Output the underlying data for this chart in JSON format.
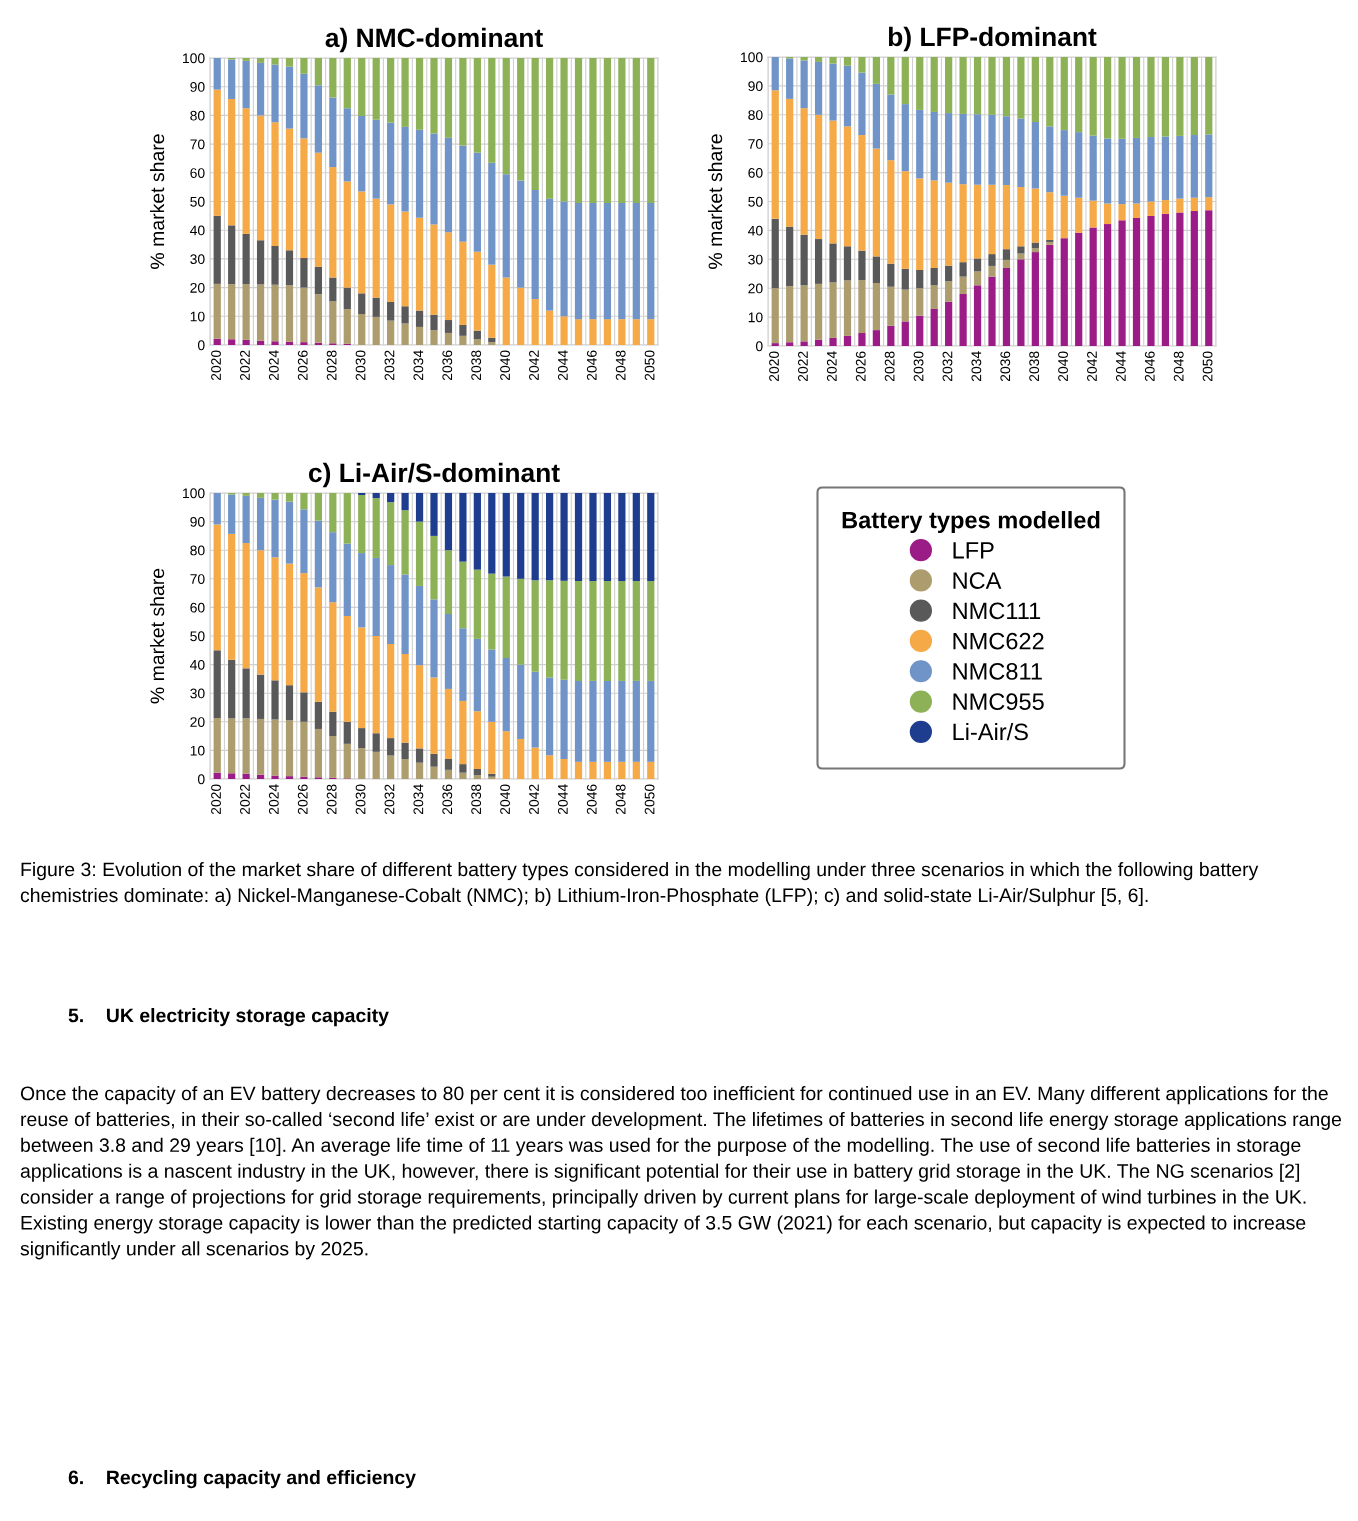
{
  "chart_data": [
    {
      "type": "bar",
      "stacked": true,
      "title": "a) NMC-dominant",
      "ylabel": "% market share",
      "ylim": [
        0,
        100
      ],
      "yticks": [
        0,
        10,
        20,
        30,
        40,
        50,
        60,
        70,
        80,
        90,
        100
      ],
      "grid": true,
      "legend": false,
      "categories": [
        "2020",
        null,
        "2022",
        null,
        "2024",
        null,
        "2026",
        null,
        "2028",
        null,
        "2030",
        null,
        "2032",
        null,
        "2034",
        null,
        "2036",
        null,
        "2038",
        null,
        "2040",
        null,
        "2042",
        null,
        "2044",
        null,
        "2046",
        null,
        "2048",
        null,
        "2050"
      ],
      "series": [
        {
          "color": "#9b1c86",
          "values": [
            2.2,
            2.0,
            1.8,
            1.5,
            1.3,
            1.1,
            1.0,
            0.8,
            0.6,
            0.4,
            0,
            0,
            0,
            0,
            0,
            0,
            0,
            0,
            0,
            0,
            0,
            0,
            0,
            0,
            0,
            0,
            0,
            0,
            0,
            0,
            0
          ]
        },
        {
          "color": "#ad9d6e",
          "values": [
            19.1,
            19.2,
            19.4,
            19.6,
            19.7,
            19.7,
            19,
            16.9,
            14.6,
            12.1,
            10.8,
            9.8,
            8.5,
            7.5,
            6.3,
            5.2,
            4.2,
            3.2,
            2,
            1,
            0,
            0,
            0,
            0,
            0,
            0,
            0,
            0,
            0,
            0,
            0
          ]
        },
        {
          "color": "#595959",
          "values": [
            23.7,
            20.5,
            17.5,
            15.4,
            13.5,
            12.2,
            10.3,
            9.5,
            8.3,
            7.5,
            7.2,
            6.7,
            6.5,
            6,
            5.7,
            5.3,
            4.5,
            3.8,
            3,
            1.5,
            0,
            0,
            0,
            0,
            0,
            0,
            0,
            0,
            0,
            0,
            0
          ]
        },
        {
          "color": "#f5a947",
          "values": [
            44,
            44,
            43.8,
            43.5,
            43.1,
            42.4,
            41.7,
            39.8,
            38.5,
            37,
            35.5,
            34.5,
            34,
            33,
            32.3,
            31.5,
            30.6,
            29,
            27.5,
            25.5,
            23.5,
            20,
            16,
            12,
            10,
            9,
            9,
            9,
            9,
            9,
            9
          ]
        },
        {
          "color": "#7094c8",
          "values": [
            11,
            13.8,
            16.5,
            18.3,
            20.1,
            21.6,
            22.5,
            23.5,
            24.2,
            25.5,
            26.3,
            27.5,
            28.5,
            29.5,
            30.7,
            31.7,
            32.9,
            33.5,
            34.5,
            35.5,
            36,
            37.3,
            38,
            39,
            40,
            40.5,
            40.5,
            40.5,
            40.5,
            40.5,
            40.5
          ]
        },
        {
          "color": "#8db156",
          "values": [
            0,
            0.5,
            1,
            1.7,
            2.3,
            3,
            5.5,
            9.5,
            13.8,
            17.5,
            20.2,
            21.5,
            22.5,
            24,
            25,
            26.3,
            27.8,
            30.5,
            33,
            36.5,
            40.5,
            42.7,
            46,
            49,
            50,
            50.5,
            50.5,
            50.5,
            50.5,
            50.5,
            50.5
          ]
        }
      ]
    },
    {
      "type": "bar",
      "stacked": true,
      "title": "b) LFP-dominant",
      "ylabel": "% market share",
      "ylim": [
        0,
        100
      ],
      "yticks": [
        0,
        10,
        20,
        30,
        40,
        50,
        60,
        70,
        80,
        90,
        100
      ],
      "grid": true,
      "legend": false,
      "categories": [
        "2020",
        null,
        "2022",
        null,
        "2024",
        null,
        "2026",
        null,
        "2028",
        null,
        "2030",
        null,
        "2032",
        null,
        "2034",
        null,
        "2036",
        null,
        "2038",
        null,
        "2040",
        null,
        "2042",
        null,
        "2044",
        null,
        "2046",
        null,
        "2048",
        null,
        "2050"
      ],
      "series": [
        {
          "color": "#9b1c86",
          "values": [
            1,
            1.3,
            1.6,
            2.2,
            2.8,
            3.5,
            4.5,
            5.5,
            7,
            8.5,
            10.5,
            12.8,
            15.3,
            18,
            21,
            24,
            27,
            30,
            32.5,
            35,
            37.3,
            39.2,
            41,
            42.2,
            43.5,
            44.3,
            45,
            45.7,
            46.2,
            46.7,
            47
          ]
        },
        {
          "color": "#ad9d6e",
          "values": [
            19,
            19.4,
            19.4,
            19.3,
            19.2,
            19.2,
            18.3,
            16.3,
            13.5,
            11,
            9.5,
            8.2,
            7.1,
            6,
            4.8,
            3.7,
            2.8,
            2,
            1.3,
            1,
            0,
            0,
            0,
            0,
            0,
            0,
            0,
            0,
            0,
            0,
            0
          ]
        },
        {
          "color": "#595959",
          "values": [
            24,
            20.6,
            17.5,
            15.5,
            13.5,
            11.8,
            10.2,
            9.2,
            8,
            7.2,
            6.3,
            6,
            5.4,
            5,
            4.5,
            4.1,
            3.7,
            2.5,
            2,
            0.7,
            0,
            0,
            0,
            0,
            0,
            0,
            0,
            0,
            0,
            0,
            0
          ]
        },
        {
          "color": "#f5a947",
          "values": [
            44.5,
            44.2,
            43.8,
            43,
            42.5,
            41.5,
            40,
            37.3,
            35.8,
            33.8,
            31.7,
            30.3,
            28.7,
            27,
            25.5,
            24,
            22.2,
            20.5,
            18.7,
            16.5,
            14.7,
            12.1,
            9.3,
            7.1,
            5.6,
            5,
            5,
            4.8,
            4.8,
            4.6,
            4.5
          ]
        },
        {
          "color": "#7094c8",
          "values": [
            11.5,
            14,
            16.5,
            18.3,
            19.7,
            21,
            21.6,
            22.4,
            22.7,
            23.2,
            23.7,
            23.7,
            24.1,
            24.3,
            24.4,
            24.2,
            23.8,
            23.7,
            23,
            22.8,
            22.7,
            22.7,
            22.5,
            22.5,
            22.6,
            22.7,
            22.3,
            22,
            21.7,
            21.7,
            21.7
          ]
        },
        {
          "color": "#8db156",
          "values": [
            0,
            0.5,
            1.2,
            1.7,
            2.3,
            3,
            5.4,
            9.3,
            13,
            16.3,
            18.3,
            19,
            19.4,
            19.7,
            19.8,
            20,
            20.5,
            21.3,
            22.5,
            24,
            25.3,
            26,
            27.2,
            28.2,
            28.3,
            28,
            27.7,
            27.5,
            27.3,
            27,
            26.8
          ]
        }
      ]
    },
    {
      "type": "bar",
      "stacked": true,
      "title": "c) Li-Air/S-dominant",
      "ylabel": "% market share",
      "ylim": [
        0,
        100
      ],
      "yticks": [
        0,
        10,
        20,
        30,
        40,
        50,
        60,
        70,
        80,
        90,
        100
      ],
      "grid": true,
      "legend": "right",
      "legend_title": "Battery types modelled",
      "categories": [
        "2020",
        null,
        "2022",
        null,
        "2024",
        null,
        "2026",
        null,
        "2028",
        null,
        "2030",
        null,
        "2032",
        null,
        "2034",
        null,
        "2036",
        null,
        "2038",
        null,
        "2040",
        null,
        "2042",
        null,
        "2044",
        null,
        "2046",
        null,
        "2048",
        null,
        "2050"
      ],
      "series": [
        {
          "name": "LFP",
          "color": "#9b1c86",
          "values": [
            2.2,
            2,
            1.8,
            1.5,
            1.2,
            1,
            0.8,
            0.6,
            0.4,
            0.2,
            0,
            0,
            0,
            0,
            0,
            0,
            0,
            0,
            0,
            0,
            0,
            0,
            0,
            0,
            0,
            0,
            0,
            0,
            0,
            0,
            0
          ]
        },
        {
          "name": "NCA",
          "color": "#ad9d6e",
          "values": [
            19.1,
            19.2,
            19.4,
            19.5,
            19.6,
            19.5,
            19.2,
            16.9,
            14.6,
            12.1,
            10.8,
            9.5,
            8.2,
            7,
            5.7,
            4.3,
            3.2,
            2.2,
            1.3,
            0.8,
            0,
            0,
            0,
            0,
            0,
            0,
            0,
            0,
            0,
            0,
            0
          ]
        },
        {
          "name": "NMC111",
          "color": "#595959",
          "values": [
            23.7,
            20.5,
            17.5,
            15.5,
            13.7,
            12.3,
            10.3,
            9.5,
            8.5,
            7.7,
            7,
            6.5,
            6.1,
            5.7,
            5,
            4.5,
            3.8,
            3,
            2.2,
            1,
            0,
            0,
            0,
            0,
            0,
            0,
            0,
            0,
            0,
            0,
            0
          ]
        },
        {
          "name": "NMC622",
          "color": "#f5a947",
          "values": [
            44,
            44,
            43.8,
            43.5,
            43,
            42.5,
            41.7,
            40,
            38.3,
            37,
            35.2,
            34,
            32.9,
            31,
            29.1,
            26.7,
            24.5,
            22.1,
            20.2,
            18.2,
            16.7,
            14,
            11,
            8.3,
            7,
            6,
            6,
            6,
            6,
            6,
            6
          ]
        },
        {
          "name": "NMC811",
          "color": "#7094c8",
          "values": [
            11,
            13.8,
            16.5,
            18.3,
            20.2,
            21.7,
            22.3,
            23.3,
            24.5,
            25.3,
            26,
            27.3,
            27.6,
            27.8,
            27.7,
            27.3,
            26.2,
            25.4,
            25.3,
            25.3,
            25.6,
            26,
            26.5,
            27.2,
            27.7,
            28.3,
            28.3,
            28.3,
            28.3,
            28.3,
            28.3
          ]
        },
        {
          "name": "NMC955",
          "color": "#8db156",
          "values": [
            0,
            0.5,
            1,
            1.7,
            2.3,
            3,
            5.7,
            9.7,
            13.7,
            17.7,
            20.3,
            20.9,
            22,
            22.5,
            22.5,
            22.2,
            22.3,
            23.3,
            24.2,
            26.5,
            28.5,
            30,
            32,
            34,
            34.6,
            34.9,
            34.9,
            34.9,
            34.9,
            34.9,
            34.9
          ]
        },
        {
          "name": "Li-Air/S",
          "color": "#1f3d8f",
          "values": [
            0,
            0,
            0,
            0,
            0,
            0,
            0,
            0,
            0,
            0,
            0.7,
            1.8,
            3.2,
            6,
            10,
            15,
            20,
            24,
            26.8,
            28.2,
            29.2,
            30,
            30.5,
            30.5,
            30.7,
            30.8,
            30.8,
            30.8,
            30.8,
            30.8,
            30.8
          ]
        }
      ]
    },
    {
      "type": "other",
      "annotations": [
        "Figure 3: Evolution of the market share of different battery types considered in the modelling under three scenarios in which the following battery chemistries dominate: a) Nickel-Manganese-Cobalt (NMC); b) Lithium-Iron-Phosphate (LFP); c) and solid-state Li-Air/Sulphur [5, 6].",
        "5.    UK electricity storage capacity",
        "Once the capacity of an EV battery decreases to 80 per cent it is considered too inefficient for continued use in an EV. Many different applications for the reuse of batteries, in their so-called ‘second life’ exist or are under development. The lifetimes of batteries in second life energy storage applications range between 3.8 and 29 years [10]. An average life time of 11 years was used for the purpose of the modelling. The use of second life batteries in storage applications is a nascent industry in the UK, however, there is significant potential for their use in battery grid storage in the UK. The NG scenarios [2] consider a range of projections for grid storage requirements, principally driven by current plans for large-scale deployment of wind turbines in the UK. Existing energy storage capacity is lower than the predicted starting capacity of 3.5 GW (2021) for each scenario, but capacity is expected to increase significantly under all scenarios by 2025.",
        "6.    Recycling capacity and efficiency"
      ]
    }
  ]
}
